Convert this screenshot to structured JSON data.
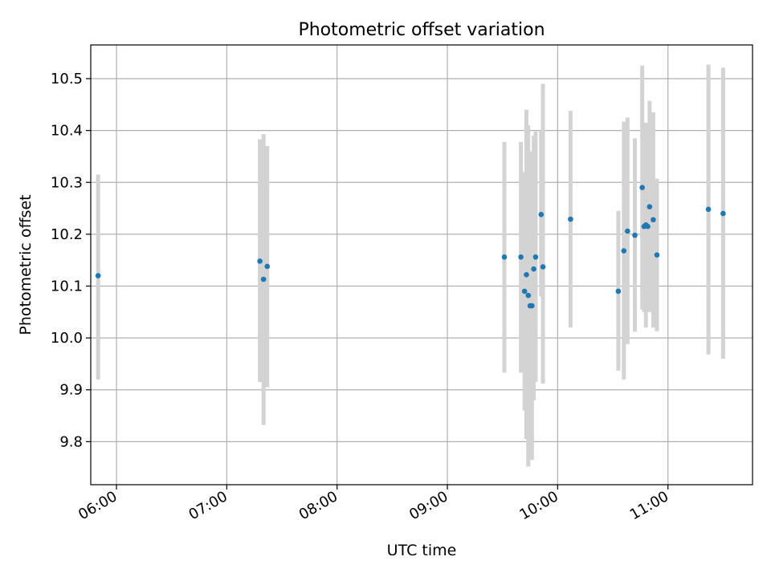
{
  "chart_data": {
    "type": "scatter",
    "title": "Photometric offset variation",
    "xlabel": "UTC time",
    "ylabel": "Photometric offset",
    "x_axis": "time",
    "xlim": [
      "05:46",
      "11:46"
    ],
    "ylim": [
      9.717,
      10.565
    ],
    "x_ticks": [
      "06:00",
      "07:00",
      "08:00",
      "09:00",
      "10:00",
      "11:00"
    ],
    "y_ticks": [
      9.8,
      9.9,
      10.0,
      10.1,
      10.2,
      10.3,
      10.4,
      10.5
    ],
    "y_tick_labels": [
      "9.8",
      "9.9",
      "10.0",
      "10.1",
      "10.2",
      "10.3",
      "10.4",
      "10.5"
    ],
    "grid": true,
    "legend": "none",
    "colors": {
      "marker": "#1f77b4",
      "errorbar": "#d3d3d3",
      "grid": "#b0b0b0",
      "axes": "#000000"
    },
    "points": [
      {
        "t": "05:50",
        "y": 10.12,
        "ylo": 9.92,
        "yhi": 10.315
      },
      {
        "t": "07:18",
        "y": 10.148,
        "ylo": 9.915,
        "yhi": 10.383
      },
      {
        "t": "07:20",
        "y": 10.113,
        "ylo": 9.832,
        "yhi": 10.393
      },
      {
        "t": "07:22",
        "y": 10.138,
        "ylo": 9.905,
        "yhi": 10.37
      },
      {
        "t": "09:31",
        "y": 10.156,
        "ylo": 9.933,
        "yhi": 10.378
      },
      {
        "t": "09:40",
        "y": 10.156,
        "ylo": 9.933,
        "yhi": 10.378
      },
      {
        "t": "09:42",
        "y": 10.09,
        "ylo": 9.86,
        "yhi": 10.32
      },
      {
        "t": "09:43",
        "y": 10.122,
        "ylo": 9.805,
        "yhi": 10.44
      },
      {
        "t": "09:44",
        "y": 10.082,
        "ylo": 9.752,
        "yhi": 10.41
      },
      {
        "t": "09:45",
        "y": 10.062,
        "ylo": 9.82,
        "yhi": 10.305
      },
      {
        "t": "09:46",
        "y": 10.062,
        "ylo": 9.765,
        "yhi": 10.36
      },
      {
        "t": "09:47",
        "y": 10.133,
        "ylo": 9.88,
        "yhi": 10.39
      },
      {
        "t": "09:48",
        "y": 10.156,
        "ylo": 9.915,
        "yhi": 10.398
      },
      {
        "t": "09:51",
        "y": 10.238,
        "ylo": 10.08,
        "yhi": 10.4
      },
      {
        "t": "09:52",
        "y": 10.137,
        "ylo": 9.912,
        "yhi": 10.49
      },
      {
        "t": "10:07",
        "y": 10.229,
        "ylo": 10.02,
        "yhi": 10.438
      },
      {
        "t": "10:33",
        "y": 10.09,
        "ylo": 9.937,
        "yhi": 10.245
      },
      {
        "t": "10:36",
        "y": 10.168,
        "ylo": 9.92,
        "yhi": 10.417
      },
      {
        "t": "10:38",
        "y": 10.206,
        "ylo": 9.988,
        "yhi": 10.425
      },
      {
        "t": "10:42",
        "y": 10.198,
        "ylo": 10.012,
        "yhi": 10.385
      },
      {
        "t": "10:46",
        "y": 10.29,
        "ylo": 10.055,
        "yhi": 10.525
      },
      {
        "t": "10:47",
        "y": 10.215,
        "ylo": 10.05,
        "yhi": 10.38
      },
      {
        "t": "10:48",
        "y": 10.218,
        "ylo": 10.02,
        "yhi": 10.415
      },
      {
        "t": "10:49",
        "y": 10.215,
        "ylo": 10.05,
        "yhi": 10.38
      },
      {
        "t": "10:50",
        "y": 10.253,
        "ylo": 10.05,
        "yhi": 10.457
      },
      {
        "t": "10:52",
        "y": 10.228,
        "ylo": 10.02,
        "yhi": 10.435
      },
      {
        "t": "10:54",
        "y": 10.16,
        "ylo": 10.013,
        "yhi": 10.307
      },
      {
        "t": "11:22",
        "y": 10.248,
        "ylo": 9.968,
        "yhi": 10.527
      },
      {
        "t": "11:30",
        "y": 10.24,
        "ylo": 9.96,
        "yhi": 10.521
      }
    ]
  }
}
